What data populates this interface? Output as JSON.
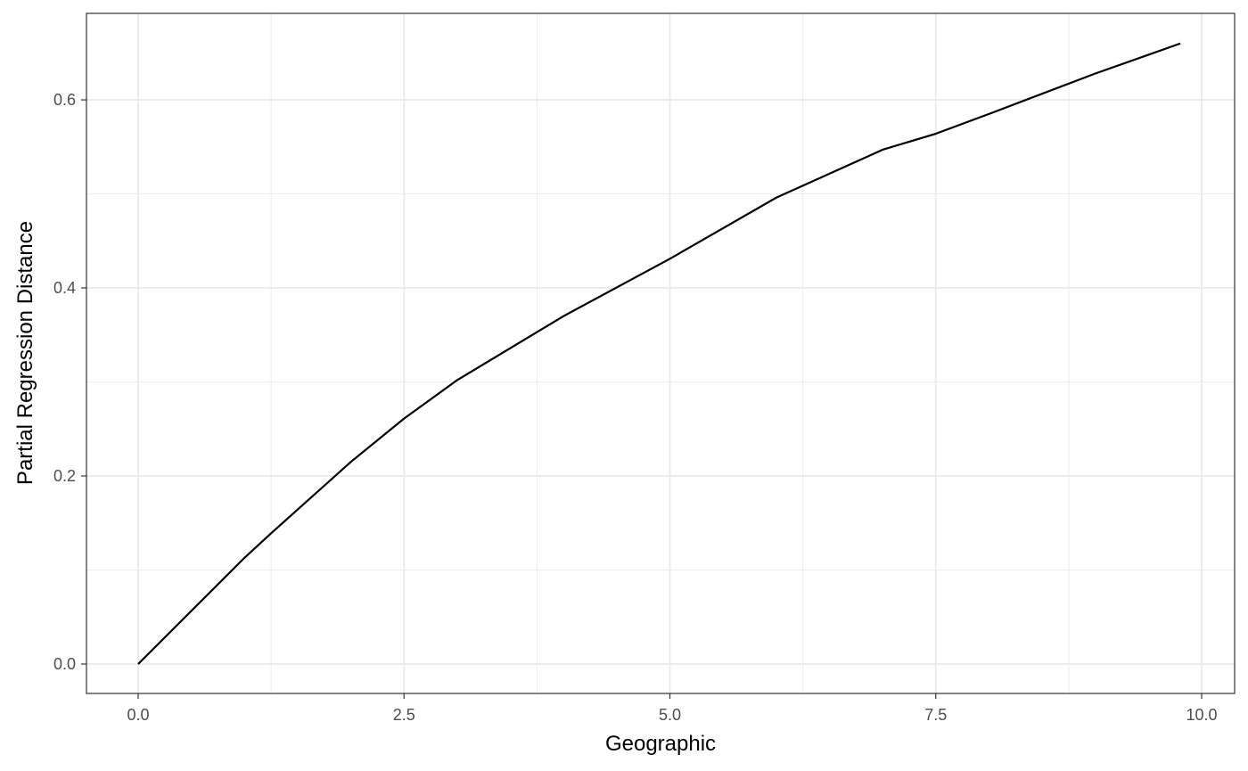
{
  "chart_data": {
    "type": "line",
    "x_label": "Geographic",
    "y_label": "Partial Regression Distance",
    "x": [
      0,
      1,
      1.25,
      2,
      2.5,
      3,
      4,
      5,
      6,
      7,
      7.5,
      8,
      9,
      9.8
    ],
    "series": [
      {
        "color": "#000000",
        "values": [
          0,
          0.113,
          0.139,
          0.215,
          0.261,
          0.302,
          0.37,
          0.431,
          0.496,
          0.547,
          0.564,
          0.585,
          0.628,
          0.66
        ]
      }
    ],
    "xlim": [
      -0.486,
      10.31
    ],
    "ylim": [
      -0.0313,
      0.692
    ],
    "xticks": [
      {
        "value": 0,
        "label": "0.0"
      },
      {
        "value": 2.5,
        "label": "2.5"
      },
      {
        "value": 5,
        "label": "5.0"
      },
      {
        "value": 7.5,
        "label": "7.5"
      },
      {
        "value": 10,
        "label": "10.0"
      }
    ],
    "yticks": [
      {
        "value": 0,
        "label": "0.0"
      },
      {
        "value": 0.2,
        "label": "0.2"
      },
      {
        "value": 0.4,
        "label": "0.4"
      },
      {
        "value": 0.6,
        "label": "0.6"
      }
    ],
    "xminor": [
      1.25,
      3.75,
      6.25,
      8.75
    ],
    "yminor": [
      0.1,
      0.3,
      0.5
    ],
    "grid": true
  }
}
